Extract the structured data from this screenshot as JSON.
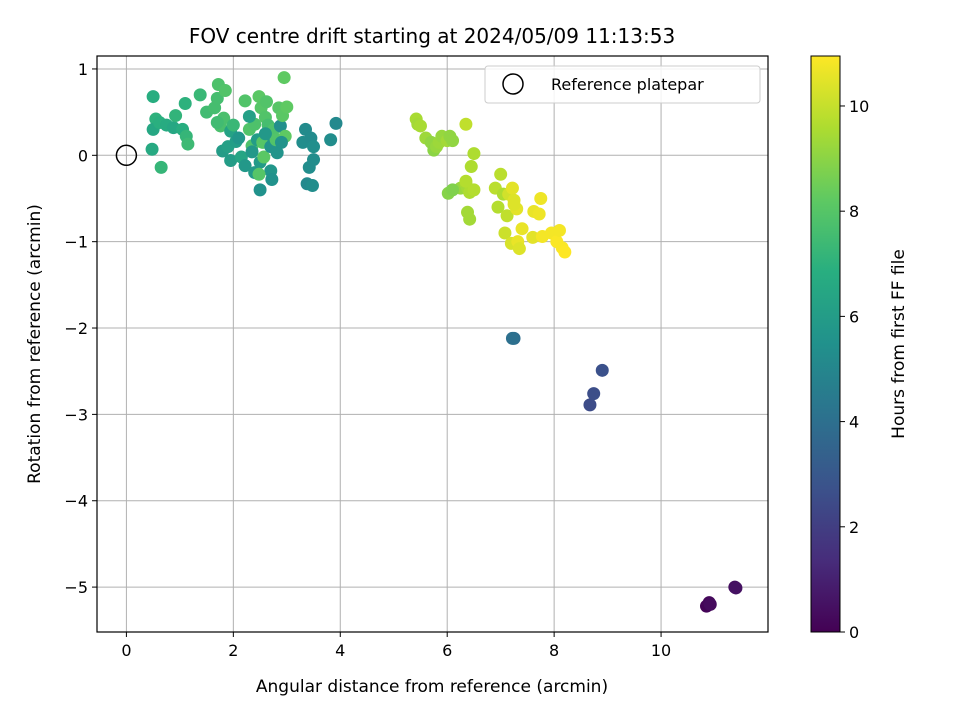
{
  "chart_data": {
    "type": "scatter",
    "title": "FOV centre drift starting at 2024/05/09 11:13:53",
    "xlabel": "Angular distance from reference (arcmin)",
    "ylabel": "Rotation from reference (arcmin)",
    "xlim": [
      -0.55,
      12.0
    ],
    "ylim": [
      -5.52,
      1.15
    ],
    "xticks": [
      0,
      2,
      4,
      6,
      8,
      10
    ],
    "yticks": [
      1,
      0,
      -1,
      -2,
      -3,
      -4,
      -5
    ],
    "xtick_labels": [
      "0",
      "2",
      "4",
      "6",
      "8",
      "10"
    ],
    "ytick_labels": [
      "1",
      "0",
      "−1",
      "−2",
      "−3",
      "−4",
      "−5"
    ],
    "grid": true,
    "legend": {
      "position": "top-right",
      "entries": [
        {
          "label": "Reference platepar",
          "marker": "open-circle"
        }
      ]
    },
    "reference_point": {
      "x": 0,
      "y": 0
    },
    "colorbar": {
      "label": "Hours from first FF file",
      "colormap": "viridis",
      "range": [
        0,
        10.95
      ],
      "ticks": [
        0,
        2,
        4,
        6,
        8,
        10
      ],
      "tick_labels": [
        "0",
        "2",
        "4",
        "6",
        "8",
        "10"
      ]
    },
    "points": [
      [
        10.85,
        -5.22,
        0.1
      ],
      [
        10.9,
        -5.18,
        0.2
      ],
      [
        10.92,
        -5.2,
        0.3
      ],
      [
        11.38,
        -5.0,
        0.4
      ],
      [
        11.4,
        -5.01,
        0.5
      ],
      [
        7.25,
        -2.12,
        3.9
      ],
      [
        7.22,
        -2.12,
        4.0
      ],
      [
        8.67,
        -2.89,
        2.5
      ],
      [
        8.74,
        -2.76,
        2.6
      ],
      [
        8.9,
        -2.49,
        2.7
      ],
      [
        0.5,
        0.68,
        6.8
      ],
      [
        0.55,
        0.42,
        7.0
      ],
      [
        0.5,
        0.3,
        6.5
      ],
      [
        0.48,
        0.07,
        6.6
      ],
      [
        0.65,
        -0.14,
        7.2
      ],
      [
        0.62,
        0.38,
        6.9
      ],
      [
        0.75,
        0.35,
        6.7
      ],
      [
        0.88,
        0.32,
        6.5
      ],
      [
        0.92,
        0.46,
        7.1
      ],
      [
        1.05,
        0.3,
        6.8
      ],
      [
        1.1,
        0.6,
        7.0
      ],
      [
        1.12,
        0.22,
        7.2
      ],
      [
        1.15,
        0.13,
        7.4
      ],
      [
        1.38,
        0.7,
        7.3
      ],
      [
        1.5,
        0.5,
        7.5
      ],
      [
        1.65,
        0.55,
        7.6
      ],
      [
        1.7,
        0.66,
        7.6
      ],
      [
        1.72,
        0.82,
        7.8
      ],
      [
        1.76,
        0.34,
        7.7
      ],
      [
        1.82,
        0.43,
        7.7
      ],
      [
        1.7,
        0.38,
        7.5
      ],
      [
        1.85,
        0.75,
        7.9
      ],
      [
        1.8,
        0.05,
        6.0
      ],
      [
        1.9,
        0.1,
        6.2
      ],
      [
        1.95,
        -0.06,
        6.0
      ],
      [
        1.95,
        0.28,
        6.3
      ],
      [
        2.05,
        0.16,
        6.1
      ],
      [
        2.15,
        -0.02,
        6.4
      ],
      [
        2.22,
        0.63,
        7.9
      ],
      [
        2.3,
        0.3,
        7.9
      ],
      [
        2.35,
        0.11,
        7.8
      ],
      [
        2.4,
        0.36,
        7.8
      ],
      [
        2.22,
        -0.12,
        5.8
      ],
      [
        2.35,
        0.04,
        5.8
      ],
      [
        2.4,
        -0.2,
        5.9
      ],
      [
        2.45,
        0.18,
        6.0
      ],
      [
        2.5,
        -0.08,
        5.9
      ],
      [
        2.48,
        0.68,
        8.1
      ],
      [
        2.52,
        0.55,
        8.0
      ],
      [
        2.55,
        0.15,
        8.0
      ],
      [
        2.57,
        -0.02,
        8.1
      ],
      [
        2.6,
        0.44,
        7.9
      ],
      [
        2.62,
        0.62,
        7.9
      ],
      [
        2.65,
        0.35,
        7.6
      ],
      [
        2.7,
        -0.18,
        5.7
      ],
      [
        2.7,
        0.1,
        5.6
      ],
      [
        2.72,
        -0.28,
        5.5
      ],
      [
        2.75,
        0.2,
        5.7
      ],
      [
        2.76,
        0.3,
        7.8
      ],
      [
        2.8,
        0.18,
        7.9
      ],
      [
        2.82,
        0.03,
        5.6
      ],
      [
        2.85,
        0.55,
        8.0
      ],
      [
        2.88,
        0.34,
        5.4
      ],
      [
        2.92,
        0.46,
        8.1
      ],
      [
        2.95,
        0.9,
        8.2
      ],
      [
        2.97,
        0.22,
        8.2
      ],
      [
        3.0,
        0.56,
        8.2
      ],
      [
        2.5,
        -0.4,
        5.5
      ],
      [
        2.48,
        -0.22,
        8.0
      ],
      [
        3.3,
        0.15,
        5.3
      ],
      [
        3.35,
        0.3,
        5.2
      ],
      [
        3.38,
        -0.33,
        5.1
      ],
      [
        3.42,
        -0.14,
        5.3
      ],
      [
        3.45,
        0.2,
        5.2
      ],
      [
        3.5,
        -0.05,
        5.3
      ],
      [
        3.5,
        0.1,
        5.4
      ],
      [
        3.48,
        -0.35,
        5.3
      ],
      [
        3.82,
        0.18,
        5.3
      ],
      [
        3.92,
        0.37,
        5.1
      ],
      [
        2.1,
        0.2,
        5.7
      ],
      [
        2.3,
        0.45,
        6.2
      ],
      [
        2.6,
        0.25,
        5.8
      ],
      [
        2.9,
        0.15,
        5.6
      ],
      [
        2.0,
        0.35,
        7.3
      ],
      [
        5.42,
        0.42,
        9.5
      ],
      [
        5.45,
        0.36,
        9.4
      ],
      [
        5.5,
        0.34,
        9.5
      ],
      [
        5.6,
        0.2,
        9.3
      ],
      [
        5.7,
        0.15,
        9.1
      ],
      [
        5.75,
        0.06,
        9.0
      ],
      [
        5.8,
        0.1,
        9.2
      ],
      [
        5.85,
        0.15,
        9.3
      ],
      [
        5.9,
        0.22,
        9.2
      ],
      [
        6.0,
        0.17,
        9.4
      ],
      [
        6.05,
        0.22,
        9.1
      ],
      [
        6.1,
        0.17,
        9.1
      ],
      [
        6.02,
        -0.44,
        8.9
      ],
      [
        6.25,
        -0.38,
        9.2
      ],
      [
        6.35,
        -0.33,
        9.5
      ],
      [
        6.38,
        -0.38,
        9.4
      ],
      [
        6.42,
        -0.43,
        9.6
      ],
      [
        6.35,
        -0.3,
        9.7
      ],
      [
        6.45,
        -0.13,
        9.6
      ],
      [
        6.5,
        0.02,
        9.6
      ],
      [
        6.35,
        0.36,
        9.9
      ],
      [
        6.38,
        -0.66,
        9.4
      ],
      [
        6.42,
        -0.74,
        9.4
      ],
      [
        6.9,
        -0.38,
        9.8
      ],
      [
        6.95,
        -0.6,
        9.7
      ],
      [
        7.0,
        -0.22,
        9.8
      ],
      [
        7.05,
        -0.45,
        9.6
      ],
      [
        7.08,
        -0.9,
        10.1
      ],
      [
        7.12,
        -0.7,
        9.9
      ],
      [
        7.15,
        -0.45,
        10.2
      ],
      [
        7.2,
        -1.02,
        10.3
      ],
      [
        7.22,
        -0.38,
        10.5
      ],
      [
        7.25,
        -0.52,
        10.4
      ],
      [
        7.3,
        -0.62,
        10.5
      ],
      [
        7.32,
        -1.0,
        10.6
      ],
      [
        7.35,
        -1.08,
        10.4
      ],
      [
        7.4,
        -0.85,
        10.6
      ],
      [
        7.6,
        -0.95,
        10.5
      ],
      [
        7.62,
        -0.65,
        10.6
      ],
      [
        7.72,
        -0.68,
        10.7
      ],
      [
        7.75,
        -0.5,
        10.7
      ],
      [
        7.78,
        -0.94,
        10.8
      ],
      [
        7.95,
        -0.9,
        10.8
      ],
      [
        8.05,
        -1.0,
        10.9
      ],
      [
        8.1,
        -0.87,
        10.8
      ],
      [
        8.15,
        -1.07,
        10.9
      ],
      [
        8.2,
        -1.12,
        10.95
      ],
      [
        7.25,
        -0.57,
        10.4
      ],
      [
        6.1,
        -0.4,
        8.8
      ],
      [
        6.5,
        -0.4,
        9.7
      ]
    ]
  }
}
